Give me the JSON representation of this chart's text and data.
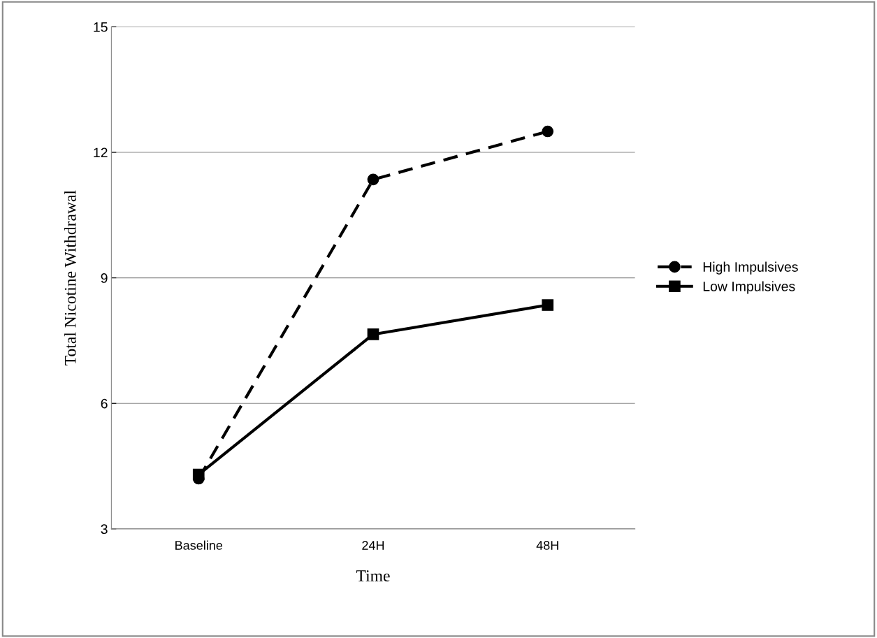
{
  "chart_data": {
    "type": "line",
    "xlabel": "Time",
    "ylabel": "Total Nicotine Withdrawal",
    "categories": [
      "Baseline",
      "24H",
      "48H"
    ],
    "series": [
      {
        "name": "High Impulsives",
        "color": "#000000",
        "values": [
          4.2,
          11.35,
          12.5
        ],
        "marker": "circle",
        "line_style": "dashed"
      },
      {
        "name": "Low Impulsives",
        "color": "#000000",
        "values": [
          4.3,
          7.65,
          8.35
        ],
        "marker": "square",
        "line_style": "solid"
      }
    ],
    "ylim": [
      3,
      15
    ],
    "yticks": [
      3,
      6,
      9,
      12,
      15
    ],
    "grid": "y",
    "legend": "right"
  }
}
